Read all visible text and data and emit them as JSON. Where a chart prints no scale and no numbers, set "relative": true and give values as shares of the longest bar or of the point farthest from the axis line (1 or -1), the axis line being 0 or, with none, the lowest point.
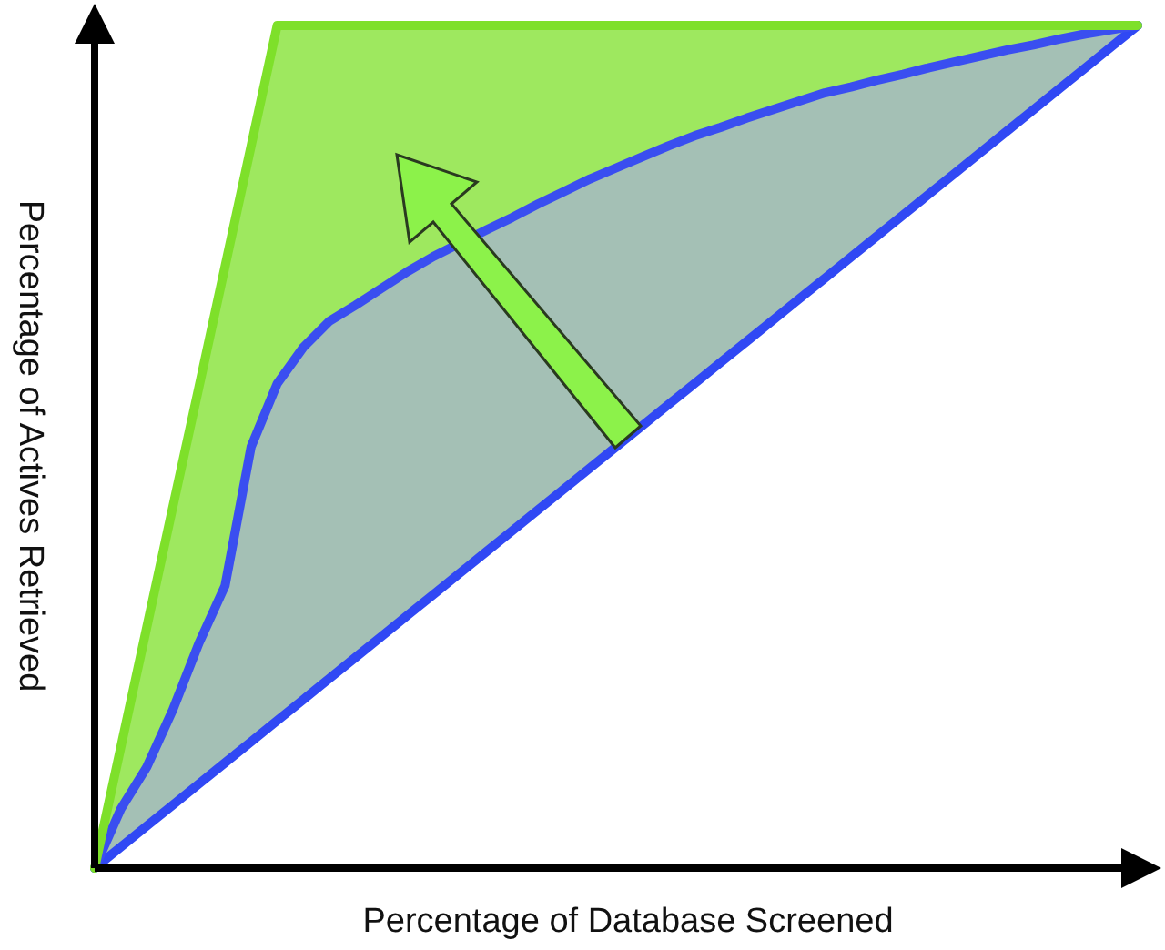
{
  "chart_data": {
    "type": "line",
    "relative": true,
    "xlabel": "Percentage of Database Screened",
    "ylabel": "Percentage of Actives Retrieved",
    "marker": "none",
    "categories": [
      null,
      null,
      null,
      null,
      null,
      null,
      null,
      null,
      null,
      null,
      null,
      null,
      null,
      null,
      null,
      null,
      null,
      null,
      null,
      null,
      null,
      null,
      null,
      null,
      null,
      null,
      null,
      null,
      null,
      null,
      null,
      null,
      null,
      null,
      null,
      null,
      null,
      null,
      null,
      null,
      null
    ],
    "series": [
      {
        "type": "line",
        "color": "#7ee02a",
        "values": [
          0,
          0.143,
          0.286,
          0.429,
          0.571,
          0.714,
          0.857,
          1,
          1,
          1,
          1,
          1,
          1,
          1,
          1,
          1,
          1,
          1,
          1,
          1,
          1,
          1,
          1,
          1,
          1,
          1,
          1,
          1,
          1,
          1,
          1,
          1,
          1,
          1,
          1,
          1,
          1,
          1,
          1,
          1,
          1
        ]
      },
      {
        "type": "line",
        "color": "#3a4ef0",
        "values": [
          0,
          0.07,
          0.12,
          0.188,
          0.267,
          0.335,
          0.5,
          0.575,
          0.618,
          0.649,
          0.668,
          0.688,
          0.708,
          0.726,
          null,
          0.757,
          0.772,
          0.788,
          0.803,
          0.818,
          0.831,
          0.844,
          0.857,
          0.869,
          0.879,
          0.89,
          0.9,
          0.91,
          0.92,
          0.927,
          0.935,
          0.942,
          0.95,
          0.957,
          0.964,
          0.971,
          0.977,
          0.984,
          0.99,
          0.995,
          1
        ]
      },
      {
        "type": "line",
        "color": "#3048f4",
        "values": [
          0,
          0.025,
          0.05,
          0.075,
          0.1,
          0.125,
          0.15,
          0.175,
          0.2,
          0.225,
          0.25,
          0.275,
          0.3,
          0.325,
          0.35,
          0.375,
          0.4,
          0.425,
          0.45,
          0.475,
          0.5,
          0.525,
          0.55,
          0.575,
          0.6,
          0.625,
          0.65,
          0.675,
          0.7,
          0.725,
          0.75,
          0.775,
          0.8,
          0.825,
          0.85,
          0.875,
          0.9,
          0.925,
          0.95,
          0.975,
          1
        ]
      }
    ]
  }
}
